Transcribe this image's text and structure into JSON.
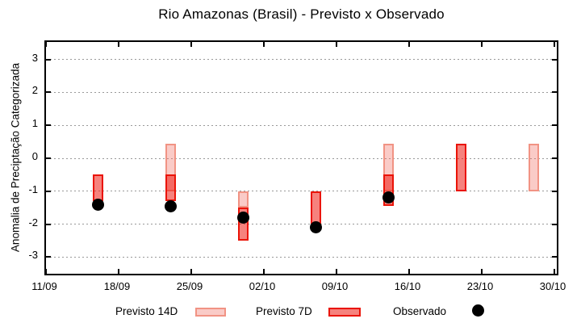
{
  "chart_data": {
    "type": "bar",
    "title": "Rio Amazonas (Brasil) - Previsto x Observado",
    "xlabel": "",
    "ylabel": "Anomalia de Preciptação Categorizada",
    "ylim": [
      -3.6,
      3.55
    ],
    "yticks": [
      3,
      2,
      1,
      0,
      -1,
      -2,
      -3
    ],
    "x_ticks": [
      {
        "label": "11/09",
        "day": 0
      },
      {
        "label": "18/09",
        "day": 7
      },
      {
        "label": "25/09",
        "day": 14
      },
      {
        "label": "02/10",
        "day": 21
      },
      {
        "label": "09/10",
        "day": 28
      },
      {
        "label": "16/10",
        "day": 35
      },
      {
        "label": "23/10",
        "day": 42
      },
      {
        "label": "30/10",
        "day": 49
      }
    ],
    "grid": true,
    "legend_position": "bottom",
    "series_meta": {
      "previsto_14d_name": "Previsto 14D",
      "previsto_7d_name": "Previsto 7D",
      "observado_name": "Observado"
    },
    "clusters": [
      {
        "date": "16/09",
        "day": 5,
        "previsto_14d": null,
        "previsto_7d": [
          -0.5,
          -1.3
        ],
        "observado": -1.4
      },
      {
        "date": "23/09",
        "day": 12,
        "previsto_14d": [
          0.45,
          -1.0
        ],
        "previsto_7d": [
          -0.5,
          -1.3
        ],
        "observado": -1.45
      },
      {
        "date": "30/09",
        "day": 19,
        "previsto_14d": [
          -1.0,
          -1.5
        ],
        "previsto_7d": [
          -1.5,
          -2.5
        ],
        "observado": -1.8
      },
      {
        "date": "07/10",
        "day": 26,
        "previsto_14d": null,
        "previsto_7d": [
          -1.0,
          -2.0
        ],
        "observado": -2.1
      },
      {
        "date": "14/10",
        "day": 33,
        "previsto_14d": [
          0.45,
          -1.0
        ],
        "previsto_7d": [
          -0.5,
          -1.45
        ],
        "observado": -1.2
      },
      {
        "date": "21/10",
        "day": 40,
        "previsto_14d": null,
        "previsto_7d": [
          0.45,
          -1.0
        ],
        "observado": null
      },
      {
        "date": "28/10",
        "day": 47,
        "previsto_14d": [
          0.45,
          -1.0
        ],
        "previsto_7d": null,
        "observado": null
      }
    ],
    "legend": [
      {
        "label": "Previsto 14D",
        "swatch": "pink-box"
      },
      {
        "label": "Previsto 7D",
        "swatch": "red-box"
      },
      {
        "label": "Observado",
        "swatch": "black-dot"
      }
    ],
    "colors": {
      "previsto_14d_fill": "rgba(240,110,100,0.36)",
      "previsto_14d_border": "#f19384",
      "previsto_7d_fill": "rgba(238,28,18,0.55)",
      "previsto_7d_border": "#ea1408",
      "observado": "#000000",
      "grid": "#999999",
      "axis": "#000000"
    }
  }
}
